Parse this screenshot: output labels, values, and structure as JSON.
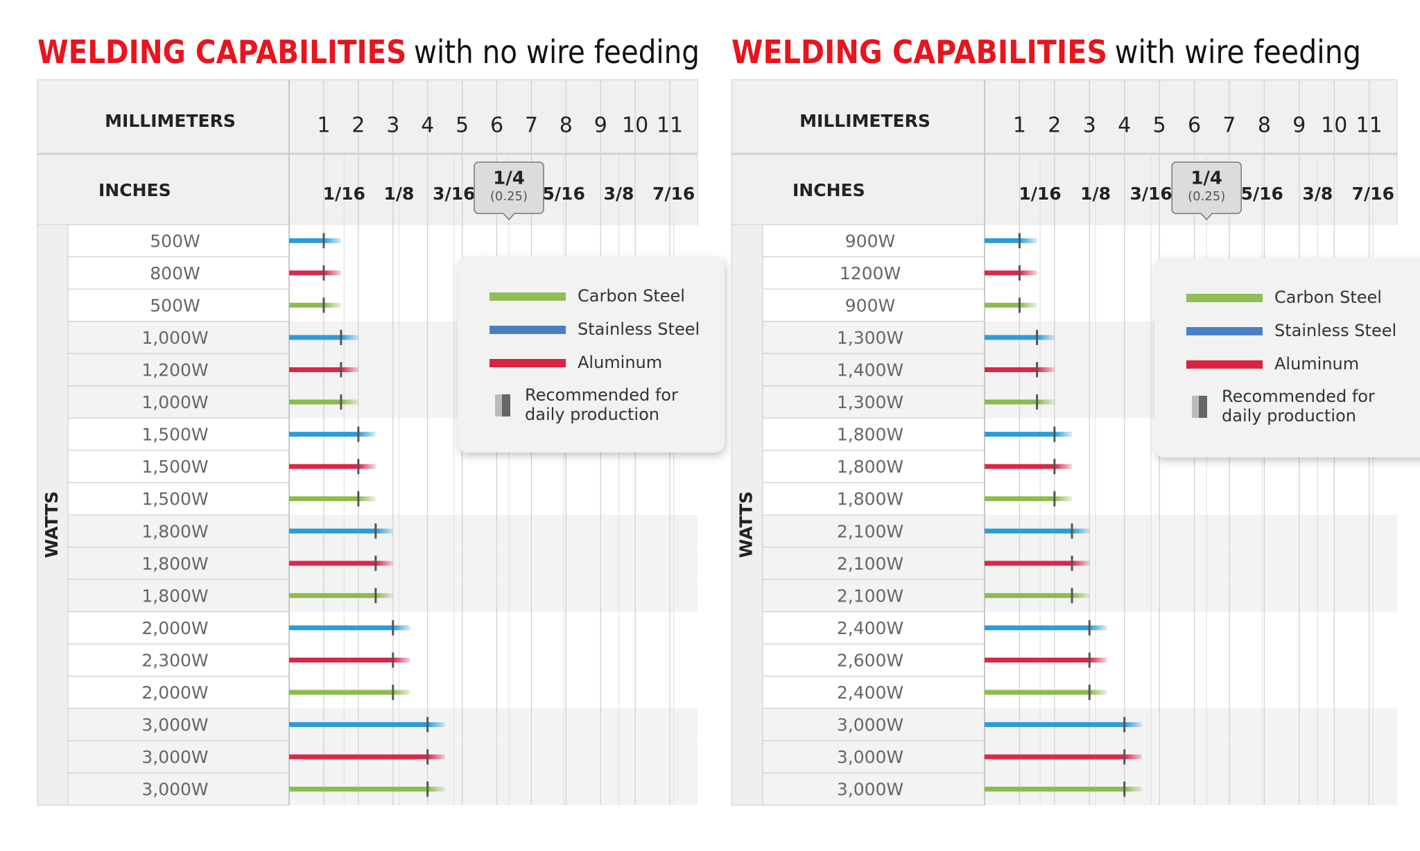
{
  "chart_data": [
    {
      "type": "range-bar",
      "title_highlight": "WELDING CAPABILITIES",
      "title_rest": "with no wire feeding",
      "mm_label": "MILLIMETERS",
      "inch_label": "INCHES",
      "watts_label": "WATTS",
      "xlim": [
        0,
        11.8
      ],
      "xticks": [
        1,
        2,
        3,
        4,
        5,
        6,
        7,
        8,
        9,
        10,
        11
      ],
      "inch_ticks": [
        {
          "value": 1.5875,
          "label": "1/16"
        },
        {
          "value": 3.175,
          "label": "1/8"
        },
        {
          "value": 4.7625,
          "label": "3/16"
        },
        {
          "value": 6.35,
          "label": "1/4",
          "note": "(0.25)"
        },
        {
          "value": 7.9375,
          "label": "5/16"
        },
        {
          "value": 9.525,
          "label": "3/8"
        },
        {
          "value": 11.1125,
          "label": "7/16"
        }
      ],
      "legend": [
        {
          "name": "Carbon Steel",
          "color": "#8fbf56"
        },
        {
          "name": "Stainless Steel",
          "color": "#4b7fc2"
        },
        {
          "name": "Aluminum",
          "color": "#d8243f"
        }
      ],
      "marker_note": [
        "Recommended for",
        "daily production"
      ],
      "rows": [
        {
          "label": "500W",
          "color": "#2a9dd8",
          "recommended": 1,
          "max": 1.5
        },
        {
          "label": "800W",
          "color": "#d9284a",
          "recommended": 1,
          "max": 1.5
        },
        {
          "label": "500W",
          "color": "#8dbb4e",
          "recommended": 1,
          "max": 1.5
        },
        {
          "label": "1,000W",
          "color": "#2a9dd8",
          "recommended": 1.5,
          "max": 2
        },
        {
          "label": "1,200W",
          "color": "#d9284a",
          "recommended": 1.5,
          "max": 2
        },
        {
          "label": "1,000W",
          "color": "#8dbb4e",
          "recommended": 1.5,
          "max": 2
        },
        {
          "label": "1,500W",
          "color": "#2a9dd8",
          "recommended": 2,
          "max": 2.5
        },
        {
          "label": "1,500W",
          "color": "#d9284a",
          "recommended": 2,
          "max": 2.5
        },
        {
          "label": "1,500W",
          "color": "#8dbb4e",
          "recommended": 2,
          "max": 2.5
        },
        {
          "label": "1,800W",
          "color": "#2a9dd8",
          "recommended": 2.5,
          "max": 3
        },
        {
          "label": "1,800W",
          "color": "#d9284a",
          "recommended": 2.5,
          "max": 3
        },
        {
          "label": "1,800W",
          "color": "#8dbb4e",
          "recommended": 2.5,
          "max": 3
        },
        {
          "label": "2,000W",
          "color": "#2a9dd8",
          "recommended": 3,
          "max": 3.5
        },
        {
          "label": "2,300W",
          "color": "#d9284a",
          "recommended": 3,
          "max": 3.5
        },
        {
          "label": "2,000W",
          "color": "#8dbb4e",
          "recommended": 3,
          "max": 3.5
        },
        {
          "label": "3,000W",
          "color": "#2a9dd8",
          "recommended": 4,
          "max": 4.5
        },
        {
          "label": "3,000W",
          "color": "#d9284a",
          "recommended": 4,
          "max": 4.5
        },
        {
          "label": "3,000W",
          "color": "#8dbb4e",
          "recommended": 4,
          "max": 4.5
        }
      ]
    },
    {
      "type": "range-bar",
      "title_highlight": "WELDING CAPABILITIES",
      "title_rest": "with wire feeding",
      "mm_label": "MILLIMETERS",
      "inch_label": "INCHES",
      "watts_label": "WATTS",
      "xlim": [
        0,
        11.8
      ],
      "xticks": [
        1,
        2,
        3,
        4,
        5,
        6,
        7,
        8,
        9,
        10,
        11
      ],
      "inch_ticks": [
        {
          "value": 1.5875,
          "label": "1/16"
        },
        {
          "value": 3.175,
          "label": "1/8"
        },
        {
          "value": 4.7625,
          "label": "3/16"
        },
        {
          "value": 6.35,
          "label": "1/4",
          "note": "(0.25)"
        },
        {
          "value": 7.9375,
          "label": "5/16"
        },
        {
          "value": 9.525,
          "label": "3/8"
        },
        {
          "value": 11.1125,
          "label": "7/16"
        }
      ],
      "legend": [
        {
          "name": "Carbon Steel",
          "color": "#8fbf56"
        },
        {
          "name": "Stainless Steel",
          "color": "#4b7fc2"
        },
        {
          "name": "Aluminum",
          "color": "#d8243f"
        }
      ],
      "marker_note": [
        "Recommended for",
        "daily production"
      ],
      "rows": [
        {
          "label": "900W",
          "color": "#2a9dd8",
          "recommended": 1,
          "max": 1.5
        },
        {
          "label": "1200W",
          "color": "#d9284a",
          "recommended": 1,
          "max": 1.5
        },
        {
          "label": "900W",
          "color": "#8dbb4e",
          "recommended": 1,
          "max": 1.5
        },
        {
          "label": "1,300W",
          "color": "#2a9dd8",
          "recommended": 1.5,
          "max": 2
        },
        {
          "label": "1,400W",
          "color": "#d9284a",
          "recommended": 1.5,
          "max": 2
        },
        {
          "label": "1,300W",
          "color": "#8dbb4e",
          "recommended": 1.5,
          "max": 2
        },
        {
          "label": "1,800W",
          "color": "#2a9dd8",
          "recommended": 2,
          "max": 2.5
        },
        {
          "label": "1,800W",
          "color": "#d9284a",
          "recommended": 2,
          "max": 2.5
        },
        {
          "label": "1,800W",
          "color": "#8dbb4e",
          "recommended": 2,
          "max": 2.5
        },
        {
          "label": "2,100W",
          "color": "#2a9dd8",
          "recommended": 2.5,
          "max": 3
        },
        {
          "label": "2,100W",
          "color": "#d9284a",
          "recommended": 2.5,
          "max": 3
        },
        {
          "label": "2,100W",
          "color": "#8dbb4e",
          "recommended": 2.5,
          "max": 3
        },
        {
          "label": "2,400W",
          "color": "#2a9dd8",
          "recommended": 3,
          "max": 3.5
        },
        {
          "label": "2,600W",
          "color": "#d9284a",
          "recommended": 3,
          "max": 3.5
        },
        {
          "label": "2,400W",
          "color": "#8dbb4e",
          "recommended": 3,
          "max": 3.5
        },
        {
          "label": "3,000W",
          "color": "#2a9dd8",
          "recommended": 4,
          "max": 4.5
        },
        {
          "label": "3,000W",
          "color": "#d9284a",
          "recommended": 4,
          "max": 4.5
        },
        {
          "label": "3,000W",
          "color": "#8dbb4e",
          "recommended": 4,
          "max": 4.5
        }
      ]
    }
  ]
}
